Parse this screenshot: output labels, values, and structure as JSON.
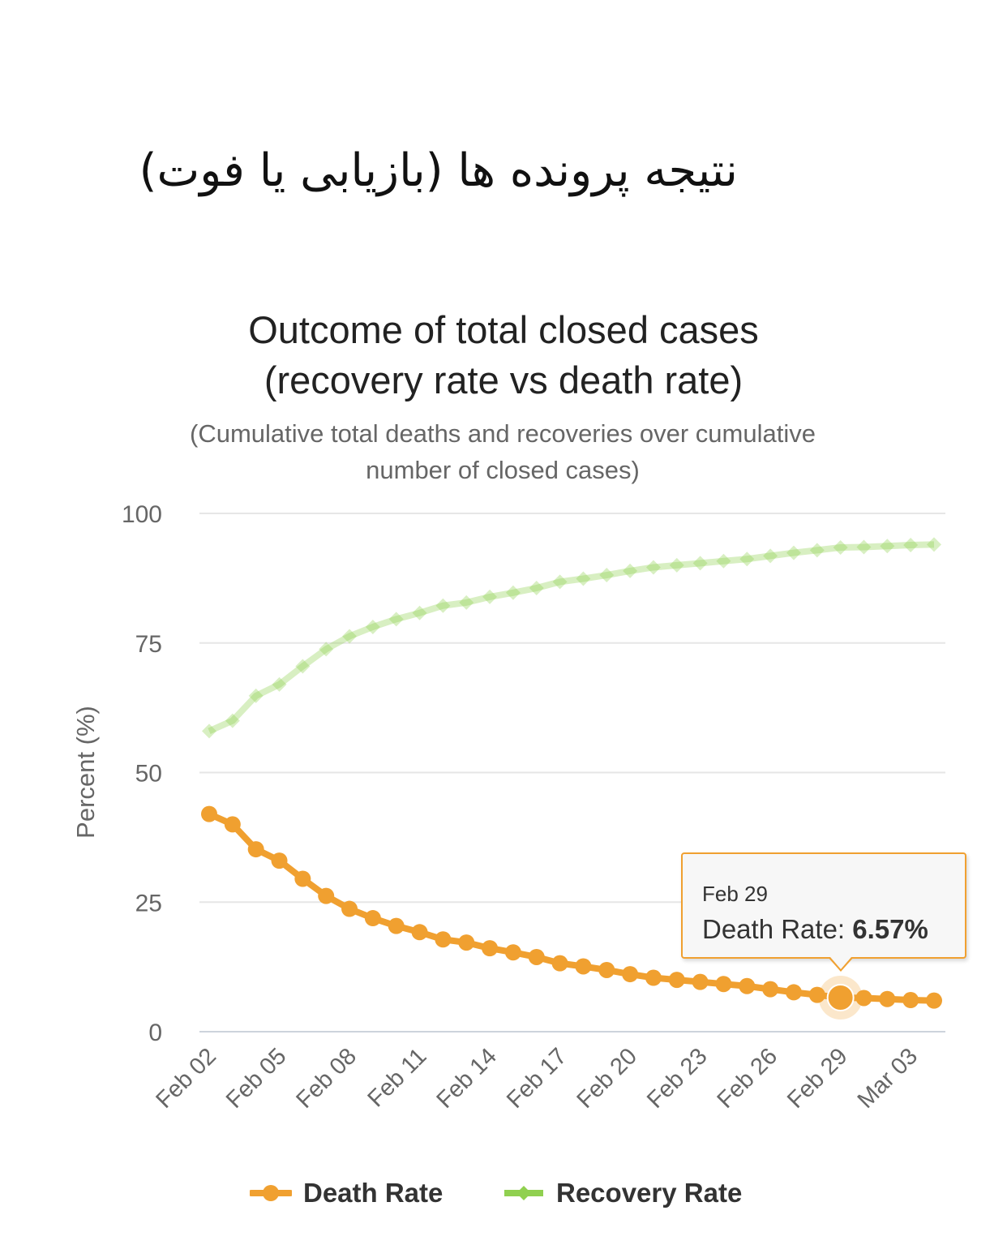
{
  "header": {
    "persian_title": "نتیجه پرونده ها (بازیابی یا فوت)"
  },
  "chart_data": {
    "type": "line",
    "title_lines": [
      "Outcome of total closed cases",
      "(recovery rate vs death rate)"
    ],
    "subtitle_lines": [
      "(Cumulative total deaths and recoveries over cumulative",
      "number of closed cases)"
    ],
    "ylabel": "Percent (%)",
    "ylim": [
      0,
      100
    ],
    "yticks": [
      0,
      25,
      50,
      75,
      100
    ],
    "x": [
      "Feb 02",
      "Feb 03",
      "Feb 04",
      "Feb 05",
      "Feb 06",
      "Feb 07",
      "Feb 08",
      "Feb 09",
      "Feb 10",
      "Feb 11",
      "Feb 12",
      "Feb 13",
      "Feb 14",
      "Feb 15",
      "Feb 16",
      "Feb 17",
      "Feb 18",
      "Feb 19",
      "Feb 20",
      "Feb 21",
      "Feb 22",
      "Feb 23",
      "Feb 24",
      "Feb 25",
      "Feb 26",
      "Feb 27",
      "Feb 28",
      "Feb 29",
      "Mar 01",
      "Mar 02",
      "Mar 03",
      "Mar 04"
    ],
    "xtick_labels": [
      "Feb 02",
      "Feb 05",
      "Feb 08",
      "Feb 11",
      "Feb 14",
      "Feb 17",
      "Feb 20",
      "Feb 23",
      "Feb 26",
      "Feb 29",
      "Mar 03"
    ],
    "series": [
      {
        "name": "Death Rate",
        "color": "#f0a030",
        "values": [
          42,
          40,
          35.2,
          33,
          29.5,
          26.2,
          23.7,
          21.9,
          20.4,
          19.2,
          17.8,
          17.2,
          16.1,
          15.3,
          14.4,
          13.2,
          12.6,
          11.9,
          11.1,
          10.4,
          10.0,
          9.6,
          9.2,
          8.8,
          8.2,
          7.6,
          7.1,
          6.57,
          6.5,
          6.3,
          6.1,
          6.0
        ]
      },
      {
        "name": "Recovery Rate",
        "color": "#90d050",
        "values": [
          58,
          60,
          64.8,
          67,
          70.5,
          73.8,
          76.3,
          78.1,
          79.6,
          80.8,
          82.2,
          82.8,
          83.9,
          84.7,
          85.6,
          86.8,
          87.4,
          88.1,
          88.9,
          89.6,
          90.0,
          90.4,
          90.8,
          91.2,
          91.8,
          92.4,
          92.9,
          93.43,
          93.5,
          93.7,
          93.9,
          94.0
        ]
      }
    ],
    "legend": [
      "Death Rate",
      "Recovery Rate"
    ],
    "grid": true
  },
  "tooltip": {
    "date": "Feb 29",
    "series_label": "Death Rate: ",
    "value": "6.57%"
  }
}
